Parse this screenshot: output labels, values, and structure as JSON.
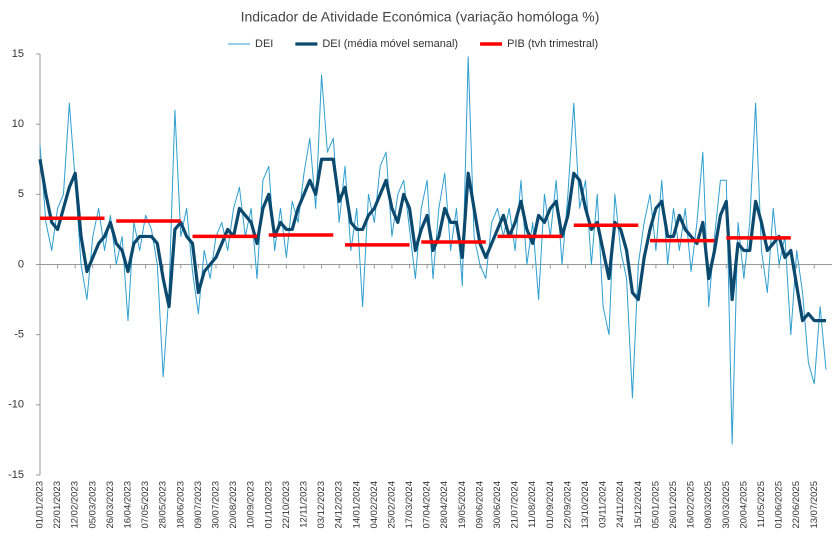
{
  "chart_data": {
    "type": "line",
    "title": "Indicador de Atividade Económica (variação homóloga %)",
    "categories": [
      "01/01/2023",
      null,
      null,
      "22/01/2023",
      null,
      null,
      "12/02/2023",
      null,
      null,
      "05/03/2023",
      null,
      null,
      "26/03/2023",
      null,
      null,
      "16/04/2023",
      null,
      null,
      "07/05/2023",
      null,
      null,
      "28/05/2023",
      null,
      null,
      "18/06/2023",
      null,
      null,
      "09/07/2023",
      null,
      null,
      "30/07/2023",
      null,
      null,
      "20/08/2023",
      null,
      null,
      "10/09/2023",
      null,
      null,
      "01/10/2023",
      null,
      null,
      "22/10/2023",
      null,
      null,
      "12/11/2023",
      null,
      null,
      "03/12/2023",
      null,
      null,
      "24/12/2023",
      null,
      null,
      "14/01/2024",
      null,
      null,
      "04/02/2024",
      null,
      null,
      "25/02/2024",
      null,
      null,
      "17/03/2024",
      null,
      null,
      "07/04/2024",
      null,
      null,
      "28/04/2024",
      null,
      null,
      "19/05/2024",
      null,
      null,
      "09/06/2024",
      null,
      null,
      "30/06/2024",
      null,
      null,
      "21/07/2024",
      null,
      null,
      "11/08/2024",
      null,
      null,
      "01/09/2024",
      null,
      null,
      "22/09/2024",
      null,
      null,
      "13/10/2024",
      null,
      null,
      "03/11/2024",
      null,
      null,
      "24/11/2024",
      null,
      null,
      "15/12/2024",
      null,
      null,
      "05/01/2025",
      null,
      null,
      "26/01/2025",
      null,
      null,
      "16/02/2025",
      null,
      null,
      "09/03/2025",
      null,
      null,
      "30/03/2025",
      null,
      null,
      "20/04/2025",
      null,
      null,
      "11/05/2025",
      null,
      null,
      "01/06/2025",
      null,
      null,
      "22/06/2025",
      null,
      null,
      "13/07/2025",
      null,
      null
    ],
    "series": [
      {
        "name": "DEI",
        "color": "#2e9fd0",
        "values": [
          8.5,
          3,
          1,
          4,
          5,
          11.5,
          6,
          0,
          -2.5,
          2,
          4,
          1,
          3.5,
          0,
          2,
          -4,
          3,
          1,
          3.5,
          2.5,
          0,
          -8,
          -2,
          11,
          2,
          4,
          -0.5,
          -3.5,
          1,
          -1,
          2,
          3,
          1,
          4,
          5.5,
          2,
          4,
          -1,
          6,
          7,
          1,
          4,
          0.5,
          4.5,
          3,
          6.5,
          9,
          4,
          13.5,
          8,
          9,
          3,
          7,
          1,
          4,
          -3,
          5,
          3,
          7,
          8,
          2,
          5,
          6,
          2.5,
          -1,
          4,
          6,
          -1,
          4,
          6.5,
          1,
          4,
          -1.5,
          14.8,
          2,
          0,
          -1,
          3,
          4,
          2,
          4,
          1,
          6,
          0,
          3,
          -2.5,
          5,
          2,
          6,
          0,
          5,
          11.5,
          4,
          6,
          0,
          5,
          -3,
          -5,
          5,
          1,
          -1,
          -9.5,
          0,
          3,
          5,
          1,
          6,
          0,
          4,
          1,
          4,
          -0.5,
          3,
          8,
          -3,
          2,
          6,
          6,
          -12.8,
          3,
          -1,
          3,
          11.5,
          1,
          -2,
          4,
          0,
          2,
          -5,
          1,
          -2,
          -7,
          -8.5,
          -3,
          -7.5
        ]
      },
      {
        "name": "DEI (média móvel semanal)",
        "color": "#0b4a6e",
        "values": [
          7.5,
          5,
          3,
          2.5,
          4,
          5.5,
          6.5,
          2,
          -0.5,
          0.5,
          1.5,
          2,
          3,
          1.5,
          1,
          -0.5,
          1.5,
          2,
          2,
          2,
          1.5,
          -1,
          -3,
          2.5,
          3,
          2,
          1.5,
          -2,
          -0.5,
          0,
          0.5,
          1.5,
          2.5,
          2,
          4,
          3.5,
          3,
          1.5,
          4,
          5,
          2,
          3,
          2.5,
          2.5,
          4,
          5,
          6,
          5,
          7.5,
          7.5,
          7.5,
          4.5,
          5.5,
          3,
          2.5,
          2.5,
          3.5,
          4,
          5,
          6,
          4,
          3,
          5,
          4,
          1,
          2.5,
          3.5,
          1,
          2,
          4,
          3,
          3,
          0.5,
          6.5,
          4,
          1.5,
          0.5,
          1.5,
          2.5,
          3.5,
          2,
          3,
          4.5,
          2.5,
          1.5,
          3.5,
          3,
          4,
          4.5,
          2,
          3.5,
          6.5,
          6,
          4,
          2.5,
          3,
          1,
          -1,
          3,
          2.5,
          1,
          -2,
          -2.5,
          0.5,
          2.5,
          4,
          4.5,
          2,
          2,
          3.5,
          2.5,
          2,
          1.5,
          3,
          -1,
          1,
          3.5,
          4.5,
          -2.5,
          1.5,
          1,
          1,
          4.5,
          3,
          1,
          1.5,
          2,
          0.5,
          1,
          -1.5,
          -4,
          -3.5,
          -4,
          -4,
          -4
        ]
      },
      {
        "name": "PIB (tvh trimestral)",
        "color": "#ff0000",
        "values": [
          3.3,
          3.3,
          3.3,
          3.3,
          3.3,
          3.3,
          3.3,
          3.3,
          3.3,
          3.3,
          3.3,
          3.3,
          null,
          3.1,
          3.1,
          3.1,
          3.1,
          3.1,
          3.1,
          3.1,
          3.1,
          3.1,
          3.1,
          3.1,
          3.1,
          null,
          2.0,
          2.0,
          2.0,
          2.0,
          2.0,
          2.0,
          2.0,
          2.0,
          2.0,
          2.0,
          2.0,
          2.0,
          null,
          2.1,
          2.1,
          2.1,
          2.1,
          2.1,
          2.1,
          2.1,
          2.1,
          2.1,
          2.1,
          2.1,
          2.1,
          null,
          1.4,
          1.4,
          1.4,
          1.4,
          1.4,
          1.4,
          1.4,
          1.4,
          1.4,
          1.4,
          1.4,
          1.4,
          null,
          1.6,
          1.6,
          1.6,
          1.6,
          1.6,
          1.6,
          1.6,
          1.6,
          1.6,
          1.6,
          1.6,
          1.6,
          null,
          2.0,
          2.0,
          2.0,
          2.0,
          2.0,
          2.0,
          2.0,
          2.0,
          2.0,
          2.0,
          2.0,
          2.0,
          null,
          2.8,
          2.8,
          2.8,
          2.8,
          2.8,
          2.8,
          2.8,
          2.8,
          2.8,
          2.8,
          2.8,
          2.8,
          null,
          1.7,
          1.7,
          1.7,
          1.7,
          1.7,
          1.7,
          1.7,
          1.7,
          1.7,
          1.7,
          1.7,
          1.7,
          null,
          1.9,
          1.9,
          1.9,
          1.9,
          1.9,
          1.9,
          1.9,
          1.9,
          1.9,
          1.9,
          1.9,
          1.9,
          null,
          null,
          null,
          null,
          null,
          null
        ]
      }
    ],
    "ylim": [
      -15,
      15
    ],
    "yticks": [
      -15,
      -10,
      -5,
      0,
      5,
      10,
      15
    ],
    "grid": false,
    "legend": "top"
  }
}
